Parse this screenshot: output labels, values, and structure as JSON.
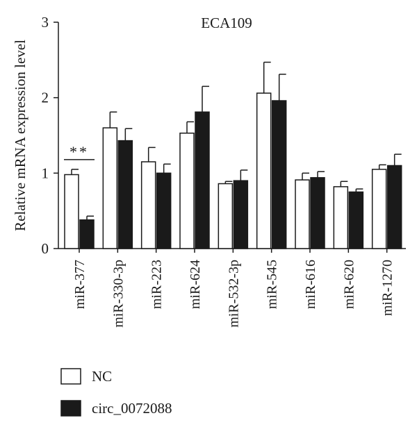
{
  "chart_data": {
    "type": "bar",
    "title": "ECA109",
    "ylabel": "Relative mRNA expression level",
    "xlabel": "",
    "ylim": [
      0,
      3
    ],
    "yticks": [
      0,
      1,
      2,
      3
    ],
    "categories": [
      "miR-377",
      "miR-330-3p",
      "miR-223",
      "miR-624",
      "miR-532-3p",
      "miR-545",
      "miR-616",
      "miR-620",
      "miR-1270"
    ],
    "series": [
      {
        "name": "NC",
        "color": "#ffffff",
        "values": [
          0.98,
          1.6,
          1.15,
          1.53,
          0.86,
          2.06,
          0.91,
          0.82,
          1.05
        ],
        "errors": [
          0.07,
          0.21,
          0.19,
          0.15,
          0.03,
          0.41,
          0.09,
          0.07,
          0.06
        ]
      },
      {
        "name": "circ_0072088",
        "color": "#1a1a1a",
        "values": [
          0.38,
          1.43,
          1.0,
          1.81,
          0.9,
          1.96,
          0.94,
          0.75,
          1.1
        ],
        "errors": [
          0.05,
          0.16,
          0.12,
          0.34,
          0.14,
          0.35,
          0.08,
          0.04,
          0.15
        ]
      }
    ],
    "annotations": [
      {
        "text": "**",
        "category": "miR-377"
      }
    ],
    "legend": {
      "placement": "bottom-left"
    },
    "grid": false
  }
}
